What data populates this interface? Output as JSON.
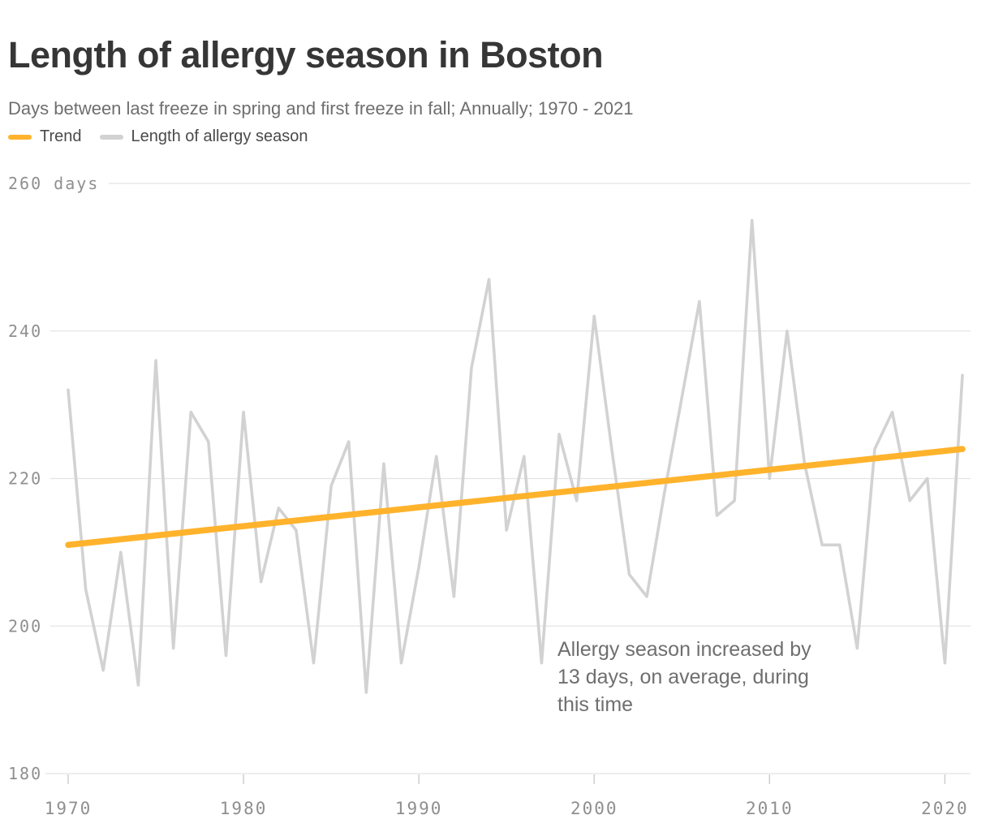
{
  "header": {
    "title": "Length of allergy season in Boston",
    "subtitle": "Days between last freeze in spring and first freeze in fall; Annually; 1970 - 2021"
  },
  "legend": [
    {
      "label": "Trend",
      "color": "#FFB32C"
    },
    {
      "label": "Length of allergy season",
      "color": "#D2D2D2"
    }
  ],
  "annotation": {
    "lines": [
      "Allergy season increased by",
      "13 days, on average, during",
      "this time"
    ]
  },
  "chart_data": {
    "type": "line",
    "title": "Length of allergy season in Boston",
    "xlabel": "",
    "ylabel": "days",
    "unit_label": "days",
    "ylim": [
      180,
      263
    ],
    "xlim": [
      1970,
      2021
    ],
    "grid": "horizontal",
    "legend_position": "top-left",
    "y_ticks": [
      180,
      200,
      220,
      240,
      260
    ],
    "x_ticks": [
      1970,
      1980,
      1990,
      2000,
      2010,
      2020
    ],
    "x": [
      1970,
      1971,
      1972,
      1973,
      1974,
      1975,
      1976,
      1977,
      1978,
      1979,
      1980,
      1981,
      1982,
      1983,
      1984,
      1985,
      1986,
      1987,
      1988,
      1989,
      1990,
      1991,
      1992,
      1993,
      1994,
      1995,
      1996,
      1997,
      1998,
      1999,
      2000,
      2001,
      2002,
      2003,
      2004,
      2005,
      2006,
      2007,
      2008,
      2009,
      2010,
      2011,
      2012,
      2013,
      2014,
      2015,
      2016,
      2017,
      2018,
      2019,
      2020,
      2021
    ],
    "series": [
      {
        "name": "Length of allergy season",
        "color": "#D2D2D2",
        "values": [
          232,
          205,
          194,
          210,
          192,
          236,
          197,
          229,
          225,
          196,
          229,
          206,
          216,
          213,
          195,
          219,
          225,
          191,
          222,
          195,
          208,
          223,
          204,
          235,
          247,
          213,
          223,
          195,
          226,
          217,
          242,
          224,
          207,
          204,
          218,
          231,
          244,
          215,
          217,
          255,
          220,
          240,
          222,
          211,
          211,
          197,
          224,
          229,
          217,
          220,
          195,
          234
        ]
      },
      {
        "name": "Trend",
        "color": "#FFB32C",
        "x": [
          1970,
          2021
        ],
        "values": [
          211,
          224
        ]
      }
    ]
  }
}
